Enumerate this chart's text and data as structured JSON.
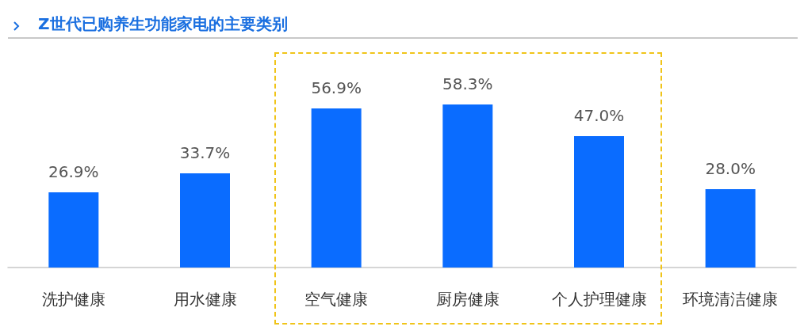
{
  "chart_data": {
    "type": "bar",
    "title": "Z世代已购养生功能家电的主要类别",
    "categories": [
      "洗护健康",
      "用水健康",
      "空气健康",
      "厨房健康",
      "个人护理健康",
      "环境清洁健康"
    ],
    "values": [
      26.9,
      33.7,
      56.9,
      58.3,
      47.0,
      28.0
    ],
    "value_labels": [
      "26.9%",
      "33.7%",
      "56.9%",
      "58.3%",
      "47.0%",
      "28.0%"
    ],
    "color": "#0a6cff"
  }
}
